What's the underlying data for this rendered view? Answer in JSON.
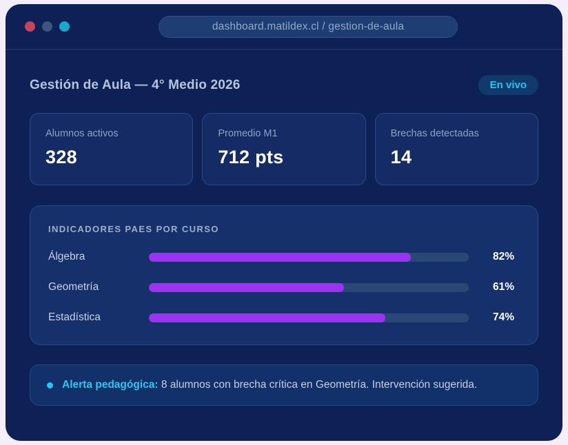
{
  "browser": {
    "url": "dashboard.matildex.cl / gestion-de-aula"
  },
  "header": {
    "title": "Gestión de Aula — 4° Medio 2026",
    "live_badge": "En vivo"
  },
  "stats": [
    {
      "label": "Alumnos activos",
      "value": "328"
    },
    {
      "label": "Promedio M1",
      "value": "712 pts"
    },
    {
      "label": "Brechas detectadas",
      "value": "14"
    }
  ],
  "indicators": {
    "heading": "INDICADORES PAES POR CURSO",
    "rows": [
      {
        "label": "Álgebra",
        "percent_label": "82%"
      },
      {
        "label": "Geometría",
        "percent_label": "61%"
      },
      {
        "label": "Estadística",
        "percent_label": "74%"
      }
    ]
  },
  "chart_data": {
    "type": "bar",
    "title": "INDICADORES PAES POR CURSO",
    "categories": [
      "Álgebra",
      "Geometría",
      "Estadística"
    ],
    "values": [
      82,
      61,
      74
    ],
    "value_suffix": "%",
    "xlim": [
      0,
      100
    ],
    "orientation": "horizontal",
    "bar_color": "#9e32f2",
    "track_color": "#2a4876"
  },
  "alert": {
    "label": "Alerta pedagógica:",
    "text": "8 alumnos con brecha crítica en Geometría. Intervención sugerida."
  },
  "colors": {
    "page_background": "#f3eef8",
    "window_background": "#0e2157",
    "card_background": "#142b66",
    "panel_background": "#15306b",
    "accent_purple": "#9e32f2",
    "accent_cyan": "#2cc4eb",
    "dot_red": "#c64459",
    "dot_slate": "#3a567e",
    "dot_cyan": "#18a9ca",
    "value_text": "#ffffff",
    "label_text": "#8da2c4"
  }
}
